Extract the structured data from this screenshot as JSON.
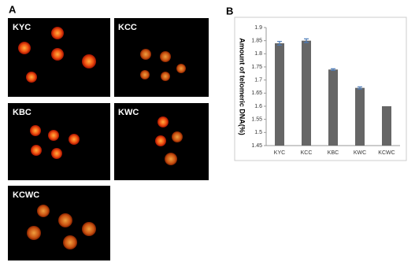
{
  "figure": {
    "panel_a_label": "A",
    "panel_b_label": "B",
    "images": [
      {
        "label": "KYC"
      },
      {
        "label": "KCC"
      },
      {
        "label": "KBC"
      },
      {
        "label": "KWC"
      },
      {
        "label": "KCWC"
      }
    ]
  },
  "chart_data": {
    "type": "bar",
    "y_label": "Amount of telomeric DNA(%)",
    "categories": [
      "KYC",
      "KCC",
      "KBC",
      "KWC",
      "KCWC"
    ],
    "values": [
      1.84,
      1.85,
      1.74,
      1.67,
      1.6
    ],
    "errors": [
      0.007,
      0.007,
      0.003,
      0.004,
      0
    ],
    "color": "#666666",
    "error_color": "#4a7ab8",
    "ylim": [
      1.45,
      1.9
    ],
    "yticks": [
      1.45,
      1.5,
      1.55,
      1.6,
      1.65,
      1.7,
      1.75,
      1.8,
      1.85,
      1.9
    ]
  }
}
